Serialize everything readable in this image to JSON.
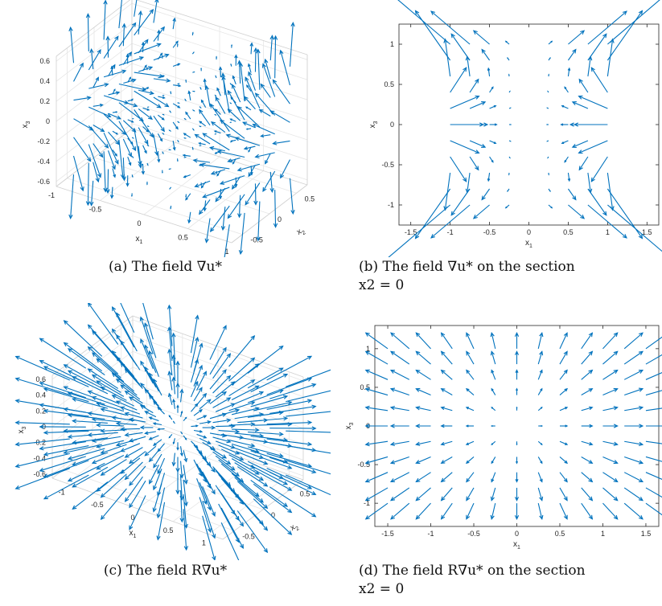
{
  "chart_data": [
    {
      "id": "a",
      "type": "quiver3",
      "caption": "(a) The field ∇u*",
      "xlabel": "x",
      "xlabel_sub": "1",
      "ylabel": "x",
      "ylabel_sub": "2",
      "zlabel": "x",
      "zlabel_sub": "3",
      "xlim": [
        -1,
        1
      ],
      "ylim": [
        -0.7,
        0.7
      ],
      "zlim": [
        -0.65,
        0.65
      ],
      "xticks": [
        "-1",
        "-0.5",
        "0",
        "0.5",
        "1"
      ],
      "yticks": [
        "-0.5",
        "0",
        "0.5"
      ],
      "zticks": [
        "0.6",
        "0.4",
        "0.2",
        "0",
        "-0.2",
        "-0.4",
        "-0.6"
      ],
      "grid": true,
      "field": "grad",
      "color": "#0072BD"
    },
    {
      "id": "b",
      "type": "quiver",
      "caption_main": "(b) The field ∇u* on the section",
      "caption_cont": "x2 = 0",
      "xlabel": "x",
      "xlabel_sub": "1",
      "ylabel": "x",
      "ylabel_sub": "3",
      "xlim": [
        -1.65,
        1.65
      ],
      "ylim": [
        -1.25,
        1.25
      ],
      "xticks": [
        "-1.5",
        "-1",
        "-0.5",
        "0",
        "0.5",
        "1",
        "1.5"
      ],
      "yticks": [
        "1",
        "0.5",
        "0",
        "-0.5",
        "-1"
      ],
      "grid": false,
      "field": "grad",
      "color": "#0072BD"
    },
    {
      "id": "c",
      "type": "quiver3",
      "caption": "(c) The field R∇u*",
      "xlabel": "x",
      "xlabel_sub": "1",
      "ylabel": "x",
      "ylabel_sub": "2",
      "zlabel": "x",
      "zlabel_sub": "3",
      "xlim": [
        -1.2,
        1.2
      ],
      "ylim": [
        -0.7,
        0.7
      ],
      "zlim": [
        -0.65,
        0.65
      ],
      "xticks": [
        "-1",
        "-0.5",
        "0",
        "0.5",
        "1"
      ],
      "yticks": [
        "-0.5",
        "0",
        "0.5"
      ],
      "zticks": [
        "0.6",
        "0.4",
        "0.2",
        "0",
        "-0.2",
        "-0.4",
        "-0.6"
      ],
      "grid": true,
      "field": "radial",
      "color": "#0072BD"
    },
    {
      "id": "d",
      "type": "quiver",
      "caption_main": "(d) The field R∇u* on the section",
      "caption_cont": "x2 = 0",
      "xlabel": "x",
      "xlabel_sub": "1",
      "ylabel": "x",
      "ylabel_sub": "3",
      "xlim": [
        -1.65,
        1.65
      ],
      "ylim": [
        -1.3,
        1.3
      ],
      "xticks": [
        "-1.5",
        "-1",
        "-0.5",
        "0",
        "0.5",
        "1",
        "1.5"
      ],
      "yticks": [
        "1",
        "0.5",
        "0",
        "-0.5",
        "-1"
      ],
      "grid": false,
      "field": "radial",
      "color": "#0072BD"
    }
  ]
}
